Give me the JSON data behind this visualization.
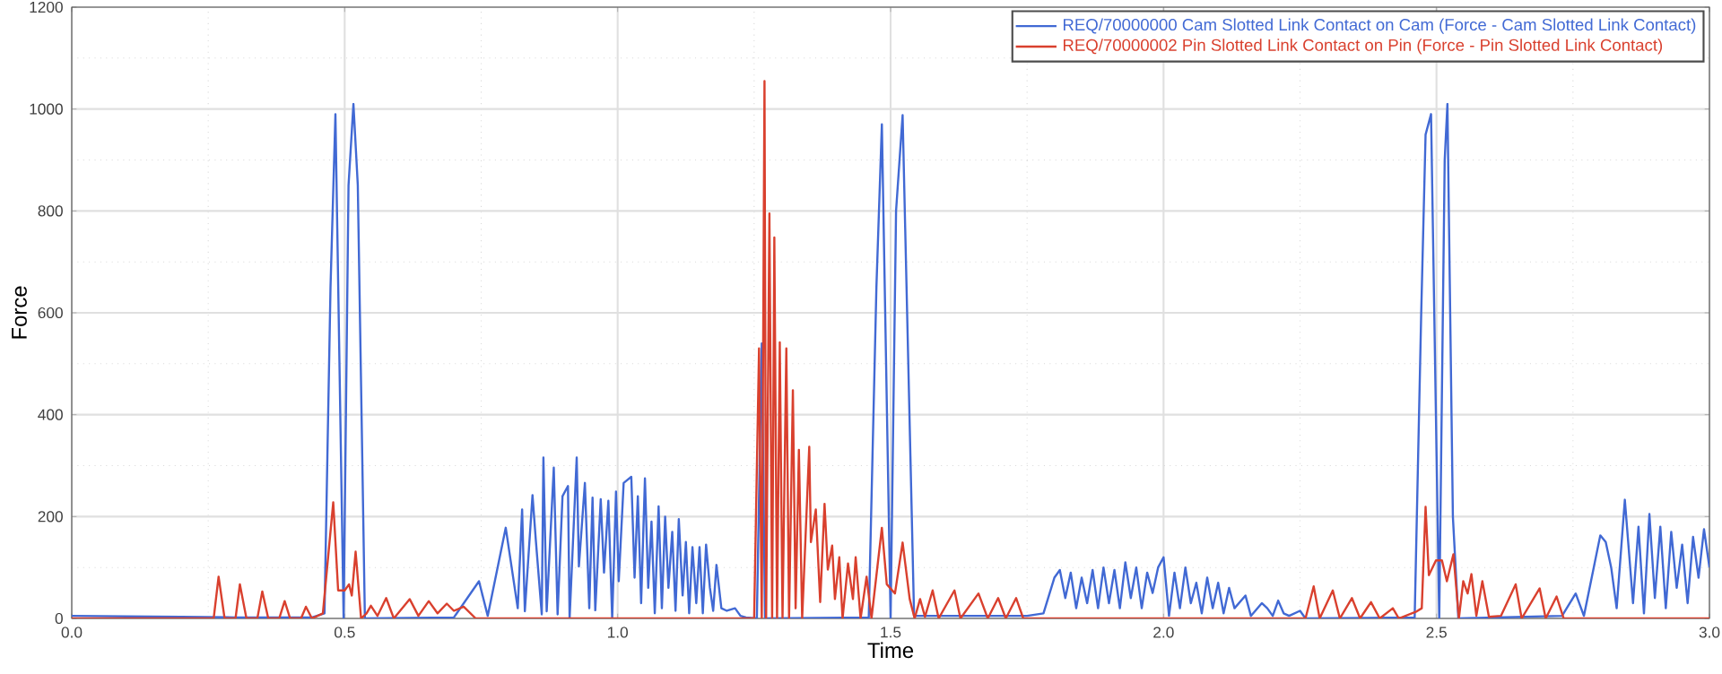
{
  "chart_data": {
    "type": "line",
    "xlabel": "Time",
    "ylabel": "Force",
    "xlim": [
      0,
      3
    ],
    "ylim": [
      0,
      1200
    ],
    "xticks": [
      {
        "value": 0,
        "label": "0.0"
      },
      {
        "value": 0.5,
        "label": "0.5"
      },
      {
        "value": 1,
        "label": "1.0"
      },
      {
        "value": 1.5,
        "label": "1.5"
      },
      {
        "value": 2,
        "label": "2.0"
      },
      {
        "value": 2.5,
        "label": "2.5"
      },
      {
        "value": 3,
        "label": "3.0"
      }
    ],
    "yticks": [
      0,
      200,
      400,
      600,
      800,
      1000,
      1200
    ],
    "grid": true,
    "legend": "top right",
    "line_style": "solid",
    "series": [
      {
        "name": "REQ/70000000 Cam Slotted Link Contact on Cam (Force - Cam Slotted Link Contact)",
        "color": "#4169d4",
        "x": [
          0,
          0.1,
          0.2,
          0.3,
          0.44,
          0.463,
          0.474,
          0.483,
          0.498,
          0.507,
          0.516,
          0.524,
          0.537,
          0.7,
          0.746,
          0.762,
          0.795,
          0.817,
          0.825,
          0.83,
          0.844,
          0.85,
          0.861,
          0.864,
          0.87,
          0.883,
          0.89,
          0.899,
          0.909,
          0.912,
          0.925,
          0.929,
          0.94,
          0.948,
          0.954,
          0.959,
          0.969,
          0.975,
          0.983,
          0.99,
          0.997,
          1.002,
          1.011,
          1.018,
          1.025,
          1.031,
          1.037,
          1.043,
          1.05,
          1.056,
          1.062,
          1.068,
          1.075,
          1.081,
          1.087,
          1.093,
          1.1,
          1.106,
          1.112,
          1.119,
          1.125,
          1.131,
          1.137,
          1.144,
          1.15,
          1.156,
          1.162,
          1.169,
          1.175,
          1.181,
          1.19,
          1.2,
          1.215,
          1.225,
          1.235,
          1.255,
          1.264,
          1.27,
          1.46,
          1.474,
          1.484,
          1.5,
          1.51,
          1.522,
          1.543,
          1.75,
          1.78,
          1.8,
          1.81,
          1.82,
          1.83,
          1.84,
          1.85,
          1.86,
          1.87,
          1.88,
          1.89,
          1.9,
          1.91,
          1.92,
          1.93,
          1.94,
          1.95,
          1.96,
          1.97,
          1.98,
          1.99,
          2.0,
          2.01,
          2.02,
          2.03,
          2.04,
          2.05,
          2.06,
          2.07,
          2.08,
          2.09,
          2.1,
          2.11,
          2.12,
          2.13,
          2.15,
          2.16,
          2.18,
          2.19,
          2.2,
          2.21,
          2.22,
          2.23,
          2.25,
          2.26,
          2.46,
          2.472,
          2.48,
          2.49,
          2.505,
          2.515,
          2.52,
          2.53,
          2.54,
          2.73,
          2.755,
          2.77,
          2.8,
          2.81,
          2.82,
          2.83,
          2.845,
          2.86,
          2.87,
          2.88,
          2.89,
          2.9,
          2.91,
          2.92,
          2.93,
          2.94,
          2.95,
          2.96,
          2.97,
          2.98,
          2.99,
          3.0
        ],
        "values": [
          5,
          4,
          3,
          2,
          2,
          10,
          650,
          990,
          0,
          850,
          1010,
          850,
          0,
          2,
          73,
          5,
          178,
          20,
          214,
          14,
          242,
          155,
          8,
          316,
          14,
          296,
          8,
          240,
          260,
          0,
          316,
          102,
          266,
          20,
          237,
          16,
          234,
          90,
          231,
          0,
          249,
          73,
          266,
          272,
          278,
          80,
          240,
          30,
          275,
          60,
          190,
          10,
          220,
          20,
          200,
          60,
          170,
          15,
          195,
          45,
          150,
          10,
          140,
          30,
          140,
          10,
          145,
          60,
          15,
          105,
          20,
          15,
          20,
          5,
          2,
          0,
          540,
          0,
          2,
          650,
          970,
          0,
          800,
          988,
          5,
          5,
          10,
          80,
          95,
          40,
          90,
          20,
          80,
          30,
          95,
          20,
          100,
          30,
          95,
          20,
          110,
          40,
          100,
          20,
          90,
          50,
          100,
          120,
          5,
          90,
          20,
          100,
          30,
          70,
          10,
          80,
          20,
          70,
          10,
          60,
          20,
          45,
          5,
          30,
          20,
          5,
          35,
          10,
          5,
          15,
          0,
          2,
          600,
          950,
          990,
          0,
          900,
          1010,
          200,
          0,
          5,
          49,
          5,
          163,
          150,
          100,
          20,
          233,
          30,
          180,
          10,
          205,
          40,
          180,
          20,
          170,
          60,
          145,
          30,
          160,
          80,
          175,
          100
        ]
      },
      {
        "name": "REQ/70000002 Pin Slotted Link Contact on Pin (Force - Pin Slotted Link Contact)",
        "color": "#d9402e",
        "x": [
          0,
          0.26,
          0.269,
          0.28,
          0.3,
          0.308,
          0.32,
          0.34,
          0.349,
          0.36,
          0.38,
          0.39,
          0.4,
          0.42,
          0.429,
          0.44,
          0.46,
          0.479,
          0.488,
          0.5,
          0.508,
          0.513,
          0.52,
          0.53,
          0.54,
          0.548,
          0.56,
          0.576,
          0.59,
          0.619,
          0.635,
          0.654,
          0.67,
          0.687,
          0.7,
          0.718,
          0.74,
          1.25,
          1.259,
          1.264,
          1.269,
          1.272,
          1.278,
          1.283,
          1.287,
          1.292,
          1.297,
          1.302,
          1.309,
          1.314,
          1.321,
          1.326,
          1.332,
          1.338,
          1.351,
          1.354,
          1.363,
          1.371,
          1.379,
          1.385,
          1.393,
          1.398,
          1.406,
          1.412,
          1.422,
          1.431,
          1.436,
          1.445,
          1.456,
          1.465,
          1.484,
          1.493,
          1.508,
          1.522,
          1.535,
          1.544,
          1.554,
          1.563,
          1.577,
          1.588,
          1.617,
          1.628,
          1.661,
          1.678,
          1.697,
          1.711,
          1.73,
          1.743,
          2.26,
          2.275,
          2.286,
          2.31,
          2.323,
          2.345,
          2.36,
          2.38,
          2.396,
          2.42,
          2.431,
          2.464,
          2.473,
          2.48,
          2.486,
          2.499,
          2.51,
          2.519,
          2.531,
          2.541,
          2.549,
          2.557,
          2.564,
          2.573,
          2.584,
          2.596,
          2.618,
          2.645,
          2.656,
          2.689,
          2.7,
          2.72,
          2.733,
          3.0
        ],
        "values": [
          0,
          0,
          82,
          0,
          0,
          67,
          0,
          0,
          53,
          0,
          0,
          34,
          0,
          0,
          23,
          0,
          10,
          228,
          55,
          55,
          67,
          45,
          131,
          0,
          10,
          25,
          5,
          40,
          0,
          38,
          5,
          34,
          10,
          29,
          15,
          23,
          0,
          0,
          530,
          0,
          1055,
          0,
          795,
          0,
          748,
          0,
          542,
          0,
          530,
          0,
          448,
          20,
          331,
          0,
          337,
          150,
          214,
          32,
          225,
          96,
          143,
          38,
          120,
          0,
          108,
          38,
          120,
          0,
          82,
          0,
          178,
          67,
          49,
          149,
          38,
          0,
          38,
          3,
          55,
          0,
          55,
          0,
          49,
          0,
          40,
          0,
          40,
          0,
          0,
          63,
          0,
          55,
          0,
          40,
          0,
          32,
          0,
          20,
          0,
          14,
          20,
          219,
          85,
          114,
          114,
          73,
          126,
          0,
          73,
          49,
          87,
          5,
          73,
          3,
          5,
          67,
          0,
          59,
          0,
          43,
          0,
          0
        ]
      }
    ]
  }
}
